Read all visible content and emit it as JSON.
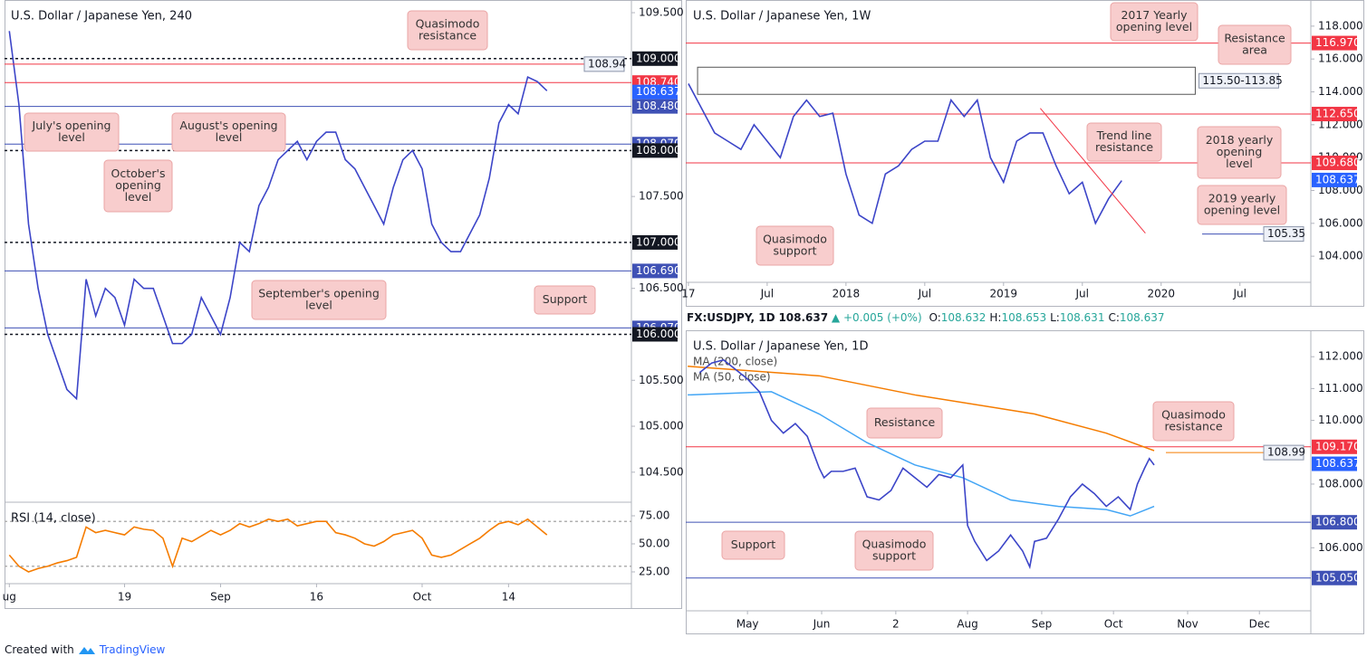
{
  "chart_data": [
    {
      "type": "line",
      "title": "U.S. Dollar / Japanese Yen, 240",
      "xlim": [
        -0.5,
        64.8
      ],
      "xticks": [
        {
          "value": 0,
          "label": "ug"
        },
        {
          "value": 12,
          "label": "19"
        },
        {
          "value": 22,
          "label": "Sep"
        },
        {
          "value": 32,
          "label": "16"
        },
        {
          "value": 43,
          "label": "Oct"
        },
        {
          "value": 52,
          "label": "14"
        }
      ],
      "ylim": [
        104.193,
        109.638
      ],
      "yticks": [
        {
          "value": 109.5,
          "label": "109.500"
        },
        {
          "value": 107.5,
          "label": "107.500"
        },
        {
          "value": 106.5,
          "label": "106.500"
        },
        {
          "value": 105.5,
          "label": "105.500"
        },
        {
          "value": 105,
          "label": "105.000"
        },
        {
          "value": 104.5,
          "label": "104.500"
        }
      ],
      "levels": [
        {
          "value": 109,
          "label": "109.000",
          "color": "#131722",
          "dashed": true
        },
        {
          "value": 108.74,
          "label": "108.740",
          "color": "#f23645"
        },
        {
          "value": 108.637,
          "label": "108.637",
          "color": "#2962ff",
          "line": false
        },
        {
          "value": 108.48,
          "label": "108.480",
          "color": "#3f51b5"
        },
        {
          "value": 108.07,
          "label": "108.070",
          "color": "#3f51b5"
        },
        {
          "value": 108,
          "label": "108.000",
          "color": "#131722",
          "dashed": true
        },
        {
          "value": 107,
          "label": "107.000",
          "color": "#131722",
          "dashed": true
        },
        {
          "value": 106.69,
          "label": "106.690",
          "color": "#3f51b5"
        },
        {
          "value": 106.07,
          "label": "106.070",
          "color": "#3f51b5"
        },
        {
          "value": 106,
          "label": "106.000",
          "color": "#131722",
          "dashed": true
        }
      ],
      "notes": [
        {
          "value": 108.94,
          "label": "108.94",
          "color": "#f23645"
        }
      ],
      "price": {
        "color": "#3c45c8",
        "x": [
          0,
          1,
          2,
          3,
          4,
          5,
          6,
          7,
          8,
          9,
          10,
          11,
          12,
          13,
          14,
          15,
          16,
          17,
          18,
          19,
          20,
          21,
          22,
          23,
          24,
          25,
          26,
          27,
          28,
          29,
          30,
          31,
          32,
          33,
          34,
          35,
          36,
          37,
          38,
          39,
          40,
          41,
          42,
          43,
          44,
          45,
          46,
          47,
          48,
          49,
          50,
          51,
          52,
          53,
          54,
          55,
          56
        ],
        "y": [
          109.3,
          108.5,
          107.2,
          106.5,
          106.0,
          105.7,
          105.4,
          105.3,
          106.6,
          106.2,
          106.5,
          106.4,
          106.1,
          106.6,
          106.5,
          106.5,
          106.2,
          105.9,
          105.9,
          106.0,
          106.4,
          106.2,
          106.0,
          106.4,
          107.0,
          106.9,
          107.4,
          107.6,
          107.9,
          108.0,
          108.1,
          107.9,
          108.1,
          108.2,
          108.2,
          107.9,
          107.8,
          107.6,
          107.4,
          107.2,
          107.6,
          107.9,
          108.0,
          107.8,
          107.2,
          107.0,
          106.9,
          106.9,
          107.1,
          107.3,
          107.7,
          108.3,
          108.5,
          108.4,
          108.8,
          108.75,
          108.65
        ]
      },
      "annotations": [
        {
          "lines": [
            "Quasimodo",
            "resistance"
          ]
        },
        {
          "lines": [
            "July's opening",
            "level"
          ]
        },
        {
          "lines": [
            "August's opening",
            "level"
          ]
        },
        {
          "lines": [
            "October's",
            "opening",
            "level"
          ]
        },
        {
          "lines": [
            "September's opening",
            "level"
          ]
        },
        {
          "lines": [
            "Support"
          ]
        }
      ]
    },
    {
      "type": "line",
      "title": "RSI (14, close)",
      "xlim": [
        -0.5,
        64.8
      ],
      "ylim": [
        14.5,
        87.1
      ],
      "yticks": [
        {
          "value": 75,
          "label": "75.00"
        },
        {
          "value": 50,
          "label": "50.00"
        },
        {
          "value": 25,
          "label": "25.00"
        }
      ],
      "levels": [
        {
          "value": 70,
          "color": "#b0b0b0",
          "dashed": true
        },
        {
          "value": 30,
          "color": "#b0b0b0",
          "dashed": true
        }
      ],
      "price": {
        "color": "#f57c00",
        "x": [
          0,
          1,
          2,
          3,
          4,
          5,
          6,
          7,
          8,
          9,
          10,
          11,
          12,
          13,
          14,
          15,
          16,
          17,
          18,
          19,
          20,
          21,
          22,
          23,
          24,
          25,
          26,
          27,
          28,
          29,
          30,
          31,
          32,
          33,
          34,
          35,
          36,
          37,
          38,
          39,
          40,
          41,
          42,
          43,
          44,
          45,
          46,
          47,
          48,
          49,
          50,
          51,
          52,
          53,
          54,
          55,
          56
        ],
        "y": [
          40,
          30,
          25,
          28,
          30,
          33,
          35,
          38,
          65,
          60,
          62,
          60,
          58,
          65,
          63,
          62,
          55,
          30,
          55,
          52,
          57,
          62,
          58,
          62,
          68,
          65,
          68,
          72,
          70,
          72,
          66,
          68,
          70,
          70,
          60,
          58,
          55,
          50,
          48,
          52,
          58,
          60,
          62,
          55,
          40,
          38,
          40,
          45,
          50,
          55,
          62,
          68,
          70,
          67,
          72,
          65,
          58
        ]
      }
    },
    {
      "type": "line",
      "title": "U.S. Dollar / Japanese Yen, 1W",
      "xlim": [
        -0.2,
        47.4
      ],
      "xticks": [
        {
          "value": 0,
          "label": "17"
        },
        {
          "value": 6,
          "label": "Jul"
        },
        {
          "value": 12,
          "label": "2018"
        },
        {
          "value": 18,
          "label": "Jul"
        },
        {
          "value": 24,
          "label": "2019"
        },
        {
          "value": 30,
          "label": "Jul"
        },
        {
          "value": 36,
          "label": "2020"
        },
        {
          "value": 42,
          "label": "Jul"
        }
      ],
      "ylim": [
        102.41,
        119.59
      ],
      "yticks": [
        {
          "value": 118,
          "label": "118.000"
        },
        {
          "value": 116,
          "label": "116.000"
        },
        {
          "value": 114,
          "label": "114.000"
        },
        {
          "value": 112,
          "label": "112.000"
        },
        {
          "value": 110,
          "label": "110.000"
        },
        {
          "value": 108,
          "label": "108.000"
        },
        {
          "value": 106,
          "label": "106.000"
        },
        {
          "value": 104,
          "label": "104.000"
        }
      ],
      "levels": [
        {
          "value": 116.97,
          "label": "116.970",
          "color": "#f23645"
        },
        {
          "value": 112.65,
          "label": "112.650",
          "color": "#f23645"
        },
        {
          "value": 109.68,
          "label": "109.680",
          "color": "#f23645"
        },
        {
          "value": 108.637,
          "label": "108.637",
          "color": "#2962ff",
          "line": false
        }
      ],
      "notes": [
        {
          "value": 105.35,
          "label": "105.35",
          "color": "#3f51b5"
        }
      ],
      "zone": {
        "from": 115.5,
        "to": 113.85,
        "label": "115.50-113.85",
        "x": [
          0.7,
          38.6
        ]
      },
      "trend_line": {
        "x": [
          26.8,
          34.8
        ],
        "y": [
          113.0,
          105.4
        ],
        "color": "#f23645"
      },
      "price": {
        "color": "#3c45c8",
        "x": [
          0,
          1,
          2,
          3,
          4,
          5,
          6,
          7,
          8,
          9,
          10,
          11,
          12,
          13,
          14,
          15,
          16,
          17,
          18,
          19,
          20,
          21,
          22,
          23,
          24,
          25,
          26,
          27,
          28,
          29,
          30,
          31,
          32,
          33
        ],
        "y": [
          114.5,
          113,
          111.5,
          111,
          110.5,
          112,
          111,
          110,
          112.5,
          113.5,
          112.5,
          112.7,
          109,
          106.5,
          106,
          109,
          109.5,
          110.5,
          111,
          111,
          113.5,
          112.5,
          113.5,
          110,
          108.5,
          111,
          111.5,
          111.5,
          109.5,
          107.8,
          108.5,
          106,
          107.5,
          108.6
        ]
      },
      "annotations": [
        {
          "lines": [
            "2017 Yearly",
            "opening level"
          ]
        },
        {
          "lines": [
            "Resistance",
            "area"
          ]
        },
        {
          "lines": [
            "Trend line",
            "resistance"
          ]
        },
        {
          "lines": [
            "2018 yearly",
            "opening",
            "level"
          ]
        },
        {
          "lines": [
            "2019 yearly",
            "opening level"
          ]
        },
        {
          "lines": [
            "Quasimodo",
            "support"
          ]
        }
      ]
    },
    {
      "type": "line",
      "title": "U.S. Dollar / Japanese Yen, 1D",
      "xlim": [
        4.2,
        265.5
      ],
      "xticks": [
        {
          "value": 30,
          "label": "May"
        },
        {
          "value": 61,
          "label": "Jun"
        },
        {
          "value": 92,
          "label": "2"
        },
        {
          "value": 122,
          "label": "Aug"
        },
        {
          "value": 153,
          "label": "Sep"
        },
        {
          "value": 183,
          "label": "Oct"
        },
        {
          "value": 214,
          "label": "Nov"
        },
        {
          "value": 244,
          "label": "Dec"
        }
      ],
      "ylim": [
        104.02,
        112.83
      ],
      "yticks": [
        {
          "value": 112,
          "label": "112.000"
        },
        {
          "value": 111,
          "label": "111.000"
        },
        {
          "value": 110,
          "label": "110.000"
        },
        {
          "value": 108,
          "label": "108.000"
        },
        {
          "value": 106,
          "label": "106.000"
        }
      ],
      "levels": [
        {
          "value": 109.17,
          "label": "109.170",
          "color": "#f23645"
        },
        {
          "value": 108.637,
          "label": "108.637",
          "color": "#2962ff",
          "line": false
        },
        {
          "value": 106.8,
          "label": "106.800",
          "color": "#3f51b5"
        },
        {
          "value": 105.05,
          "label": "105.050",
          "color": "#3f51b5"
        }
      ],
      "notes": [
        {
          "value": 108.99,
          "label": "108.99",
          "color": "#f57c00"
        }
      ],
      "price": {
        "color": "#3c45c8",
        "x": [
          10,
          15,
          20,
          25,
          30,
          35,
          40,
          45,
          50,
          55,
          60,
          62,
          65,
          70,
          75,
          80,
          85,
          90,
          95,
          100,
          105,
          110,
          115,
          120,
          122,
          125,
          130,
          135,
          140,
          145,
          148,
          150,
          155,
          160,
          165,
          170,
          175,
          180,
          185,
          190,
          193,
          196,
          198,
          200
        ],
        "y": [
          111.5,
          111.8,
          111.9,
          111.6,
          111.3,
          110.9,
          110.0,
          109.6,
          109.9,
          109.5,
          108.5,
          108.2,
          108.4,
          108.4,
          108.5,
          107.6,
          107.5,
          107.8,
          108.5,
          108.2,
          107.9,
          108.3,
          108.2,
          108.6,
          106.7,
          106.2,
          105.6,
          105.9,
          106.4,
          105.9,
          105.4,
          106.2,
          106.3,
          106.9,
          107.6,
          108.0,
          107.7,
          107.3,
          107.6,
          107.2,
          108.0,
          108.5,
          108.8,
          108.6
        ]
      },
      "series": [
        {
          "name": "MA (200, close)",
          "color": "#f57c00",
          "x": [
            5,
            60,
            100,
            150,
            180,
            200
          ],
          "values": [
            111.7,
            111.4,
            110.8,
            110.2,
            109.6,
            109.05
          ]
        },
        {
          "name": "MA (50, close)",
          "color": "#42a5f5",
          "x": [
            5,
            40,
            60,
            80,
            100,
            120,
            140,
            160,
            180,
            190,
            200
          ],
          "values": [
            110.8,
            110.9,
            110.2,
            109.3,
            108.6,
            108.2,
            107.5,
            107.3,
            107.2,
            107.0,
            107.3
          ]
        }
      ],
      "annotations": [
        {
          "lines": [
            "Resistance"
          ]
        },
        {
          "lines": [
            "Quasimodo",
            "resistance"
          ]
        },
        {
          "lines": [
            "Support"
          ]
        },
        {
          "lines": [
            "Quasimodo",
            "support"
          ]
        }
      ]
    }
  ],
  "quote_bar": {
    "symbol": "FX:USDJPY, 1D",
    "last": "108.637",
    "change": "▲ +0.005 (+0%)",
    "fields": [
      {
        "key": "O:",
        "value": "108.632"
      },
      {
        "key": "H:",
        "value": "108.653"
      },
      {
        "key": "L:",
        "value": "108.631"
      },
      {
        "key": "C:",
        "value": "108.637"
      }
    ]
  },
  "footer": {
    "prefix": "Created with",
    "brand": "TradingView"
  }
}
